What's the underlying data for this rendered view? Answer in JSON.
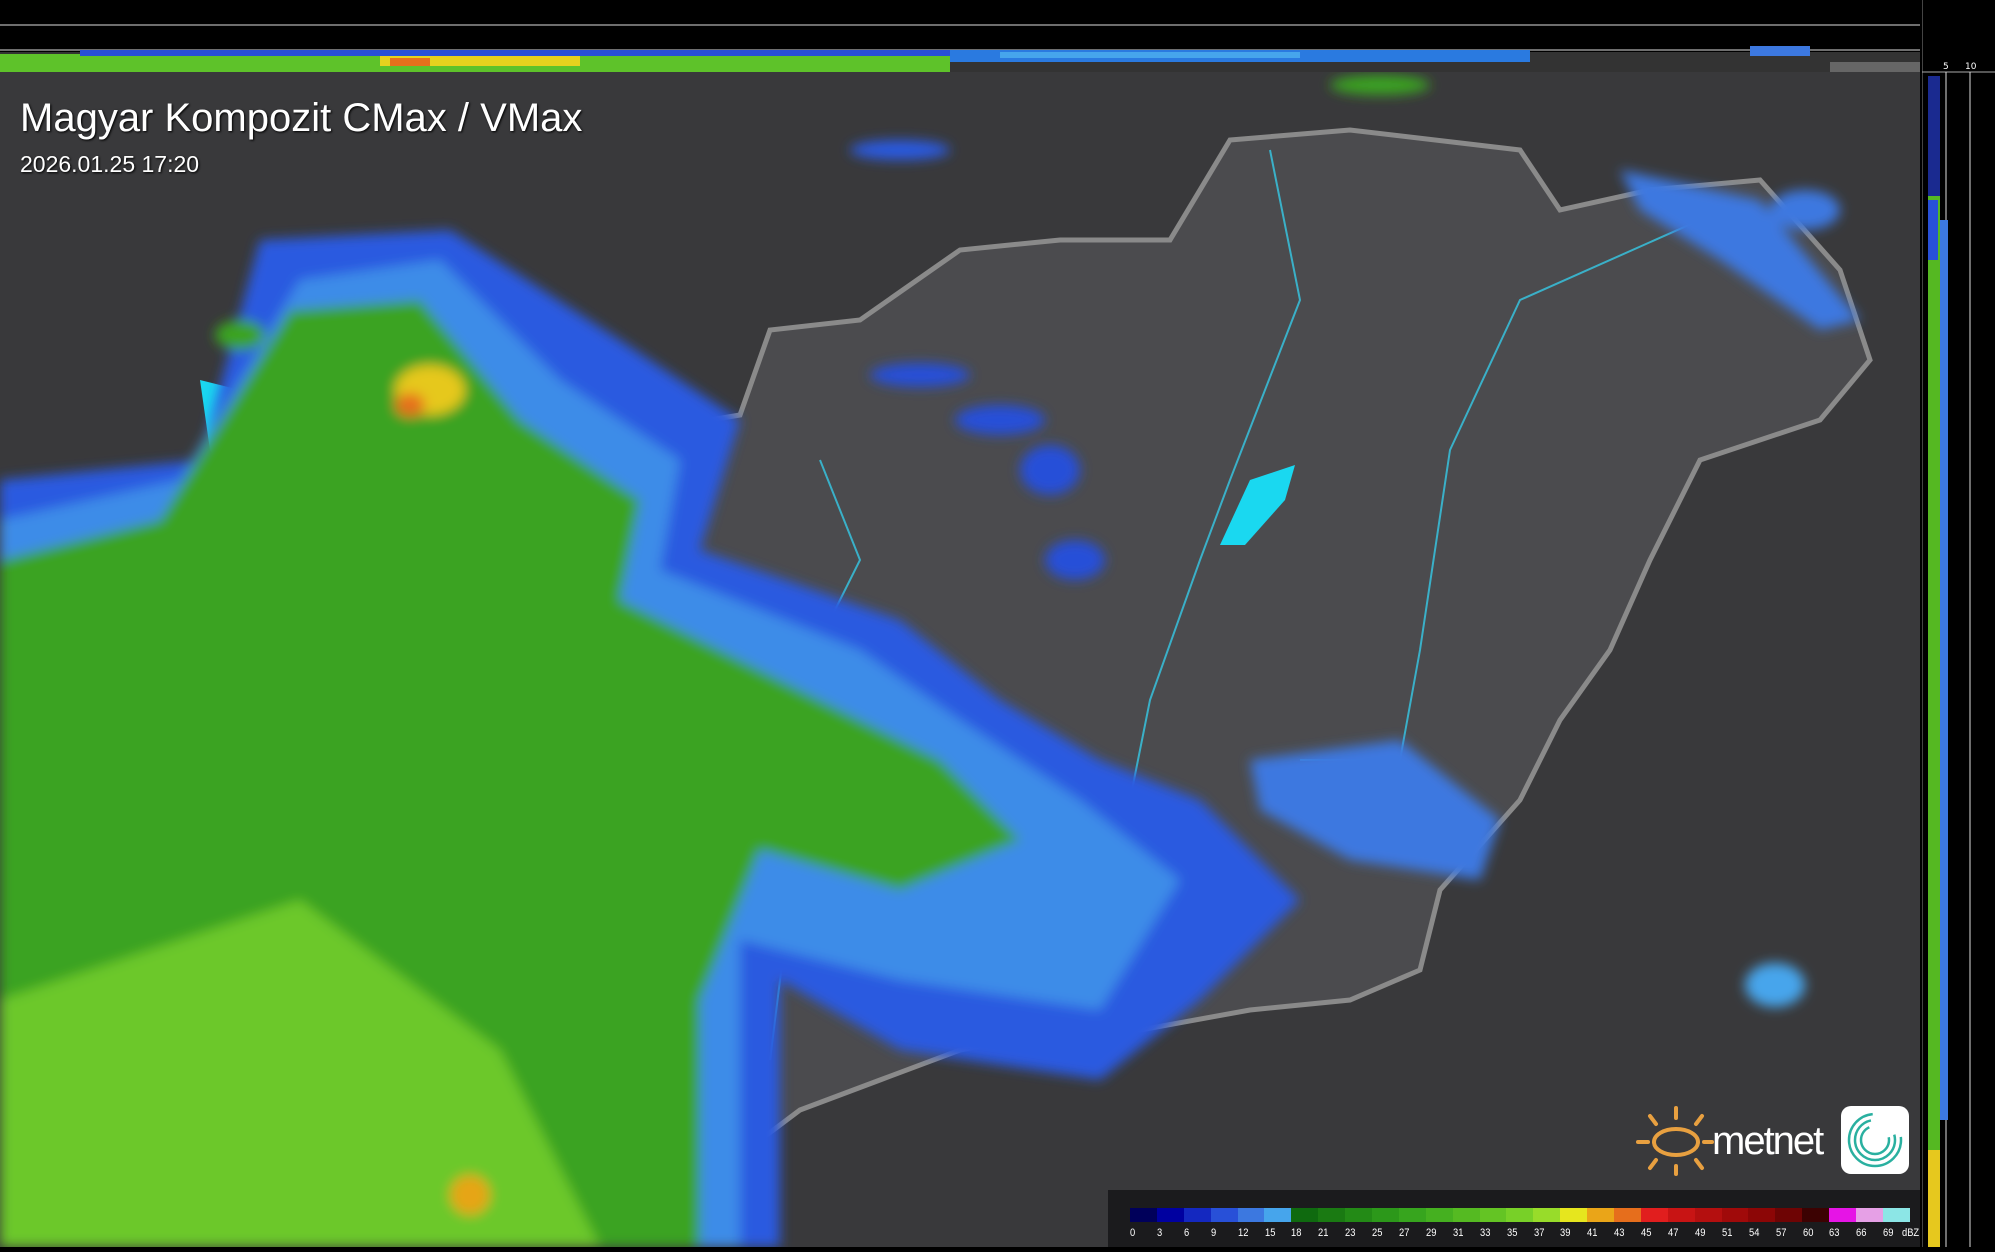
{
  "title": "Magyar Kompozit CMax / VMax",
  "timestamp": "2026.01.25 17:20",
  "side_axis": {
    "top_ticks": [
      "10",
      "5"
    ],
    "right_ticks": [
      "5",
      "10"
    ]
  },
  "legend": {
    "unit": "dBZ",
    "values": [
      "0",
      "3",
      "6",
      "9",
      "12",
      "15",
      "18",
      "21",
      "23",
      "25",
      "27",
      "29",
      "31",
      "33",
      "35",
      "37",
      "39",
      "41",
      "43",
      "45",
      "47",
      "49",
      "51",
      "54",
      "57",
      "60",
      "63",
      "66",
      "69"
    ],
    "colors": [
      "#00005a",
      "#0000a0",
      "#1428c0",
      "#2850d8",
      "#3c78e0",
      "#46a5ec",
      "#0f6a0f",
      "#1a7a12",
      "#238a16",
      "#2c981a",
      "#37a51e",
      "#45b020",
      "#55ba22",
      "#64c424",
      "#78d028",
      "#98dc2a",
      "#e6e61e",
      "#eaa518",
      "#e66e1c",
      "#e11e1e",
      "#c81414",
      "#b40f0f",
      "#a00a0a",
      "#8c0606",
      "#6e0404",
      "#3c0202",
      "#e614e6",
      "#e6a0e6",
      "#8ce6e6"
    ]
  },
  "logo": {
    "brand": "metnet",
    "sun_color": "#e8a040"
  },
  "map_colors": {
    "background": "#39393b",
    "country": "#4b4b4e",
    "border": "#8a8a8a",
    "river": "#3ab0c8",
    "lake": "#1ad8f0"
  }
}
